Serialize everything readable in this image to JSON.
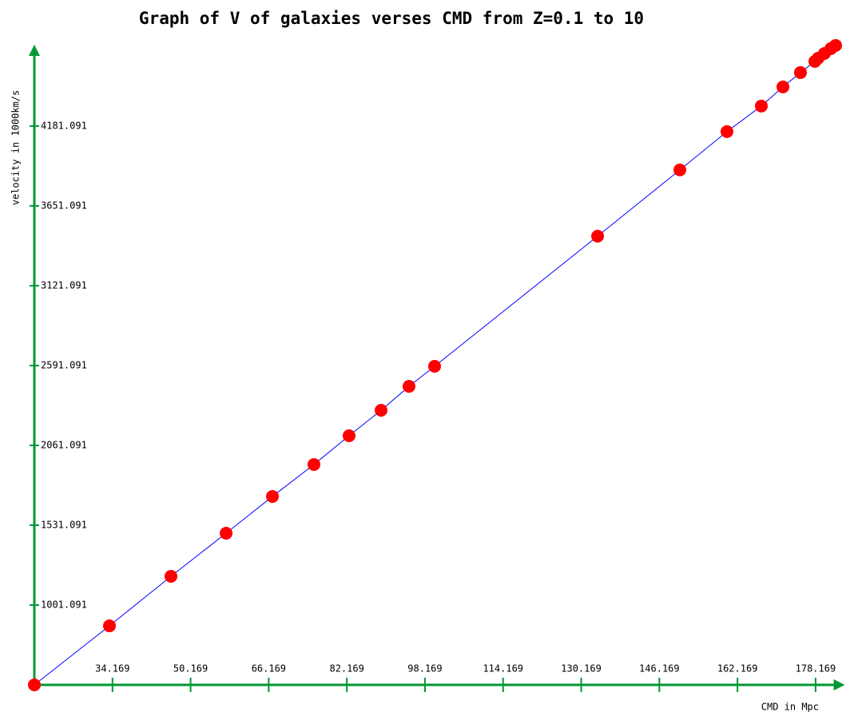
{
  "chart_data": {
    "type": "scatter",
    "title": "Graph of V of galaxies verses CMD from Z=0.1 to 10",
    "x_label": "CMD in Mpc",
    "y_label": "velocity in 1000km/s",
    "xlim": [
      18.169,
      184.169
    ],
    "ylim": [
      471.091,
      4721.091
    ],
    "xticks": [
      34.169,
      50.169,
      66.169,
      82.169,
      98.169,
      114.169,
      130.169,
      146.169,
      162.169,
      178.169
    ],
    "yticks": [
      1001.091,
      1531.091,
      2061.091,
      2591.091,
      3121.091,
      3651.091,
      4181.091
    ],
    "axis_color": "#009933",
    "line_color": "#0000ff",
    "series": [
      {
        "color": "#ff0000",
        "x": [
          18.17,
          33.55,
          46.15,
          57.44,
          66.93,
          75.43,
          82.63,
          89.18,
          94.9,
          100.14,
          133.52,
          150.37,
          160.02,
          167.06,
          171.48,
          175.07,
          178.02,
          178.67,
          179.98,
          181.29,
          182.27
        ],
        "values": [
          471,
          863,
          1192,
          1478,
          1722,
          1934,
          2125,
          2294,
          2453,
          2586,
          3450,
          3890,
          4144,
          4314,
          4441,
          4536,
          4610,
          4631,
          4663,
          4695,
          4716
        ]
      }
    ]
  }
}
